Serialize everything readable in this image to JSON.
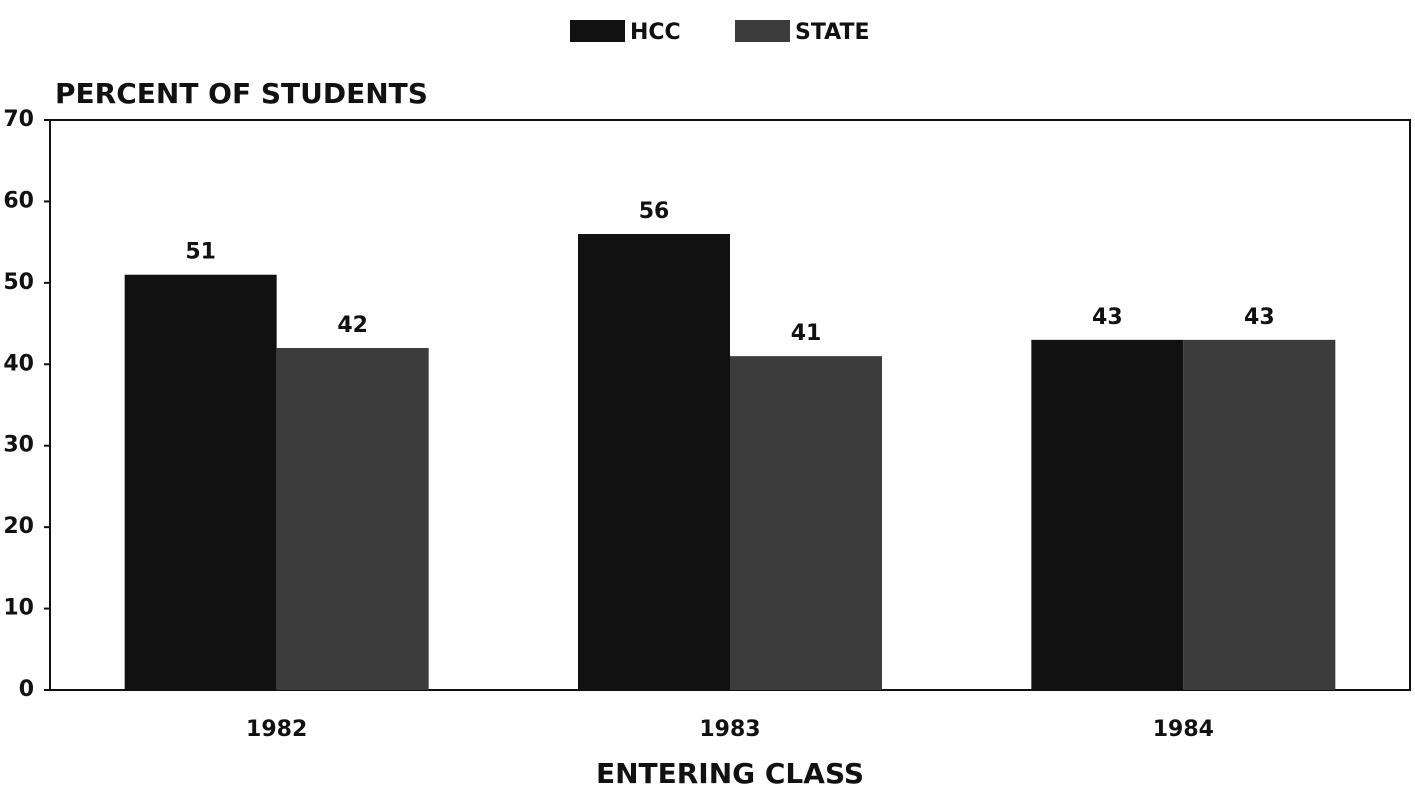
{
  "chart_data": {
    "type": "bar",
    "y_label": "PERCENT OF STUDENTS",
    "x_label": "ENTERING CLASS",
    "categories": [
      "1982",
      "1983",
      "1984"
    ],
    "series": [
      {
        "name": "HCC",
        "color": "#111111",
        "values": [
          51,
          56,
          43
        ]
      },
      {
        "name": "STATE",
        "color": "#3c3c3c",
        "values": [
          42,
          41,
          43
        ]
      }
    ],
    "ylim": [
      0,
      70
    ],
    "yticks": [
      0,
      10,
      20,
      30,
      40,
      50,
      60,
      70
    ],
    "grid": false,
    "legend": "top"
  }
}
